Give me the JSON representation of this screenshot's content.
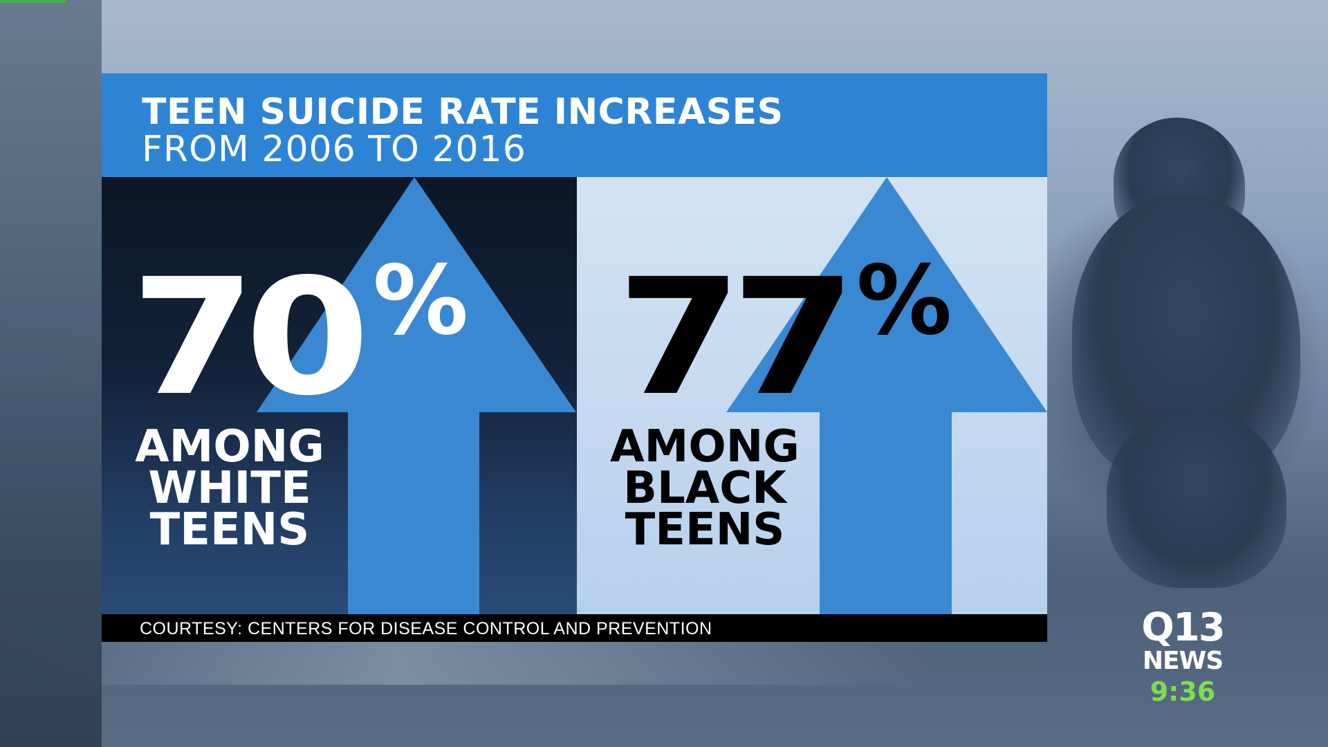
{
  "headline": {
    "title": "TEEN SUICIDE RATE INCREASES",
    "subtitle": "FROM 2006 TO 2016"
  },
  "stats": [
    {
      "value": "70",
      "unit": "%",
      "lines": [
        "AMONG",
        "WHITE",
        "TEENS"
      ]
    },
    {
      "value": "77",
      "unit": "%",
      "lines": [
        "AMONG",
        "BLACK",
        "TEENS"
      ]
    }
  ],
  "source": "COURTESY: CENTERS FOR DISEASE CONTROL AND PREVENTION",
  "station": {
    "brand": "Q13",
    "label": "NEWS",
    "time": "9:36"
  },
  "colors": {
    "header_blue": "#2d84d5",
    "arrow_blue": "#3a88d2",
    "time_green": "#7ae04e"
  },
  "icons": [
    "up-arrow-icon",
    "up-arrow-icon"
  ]
}
